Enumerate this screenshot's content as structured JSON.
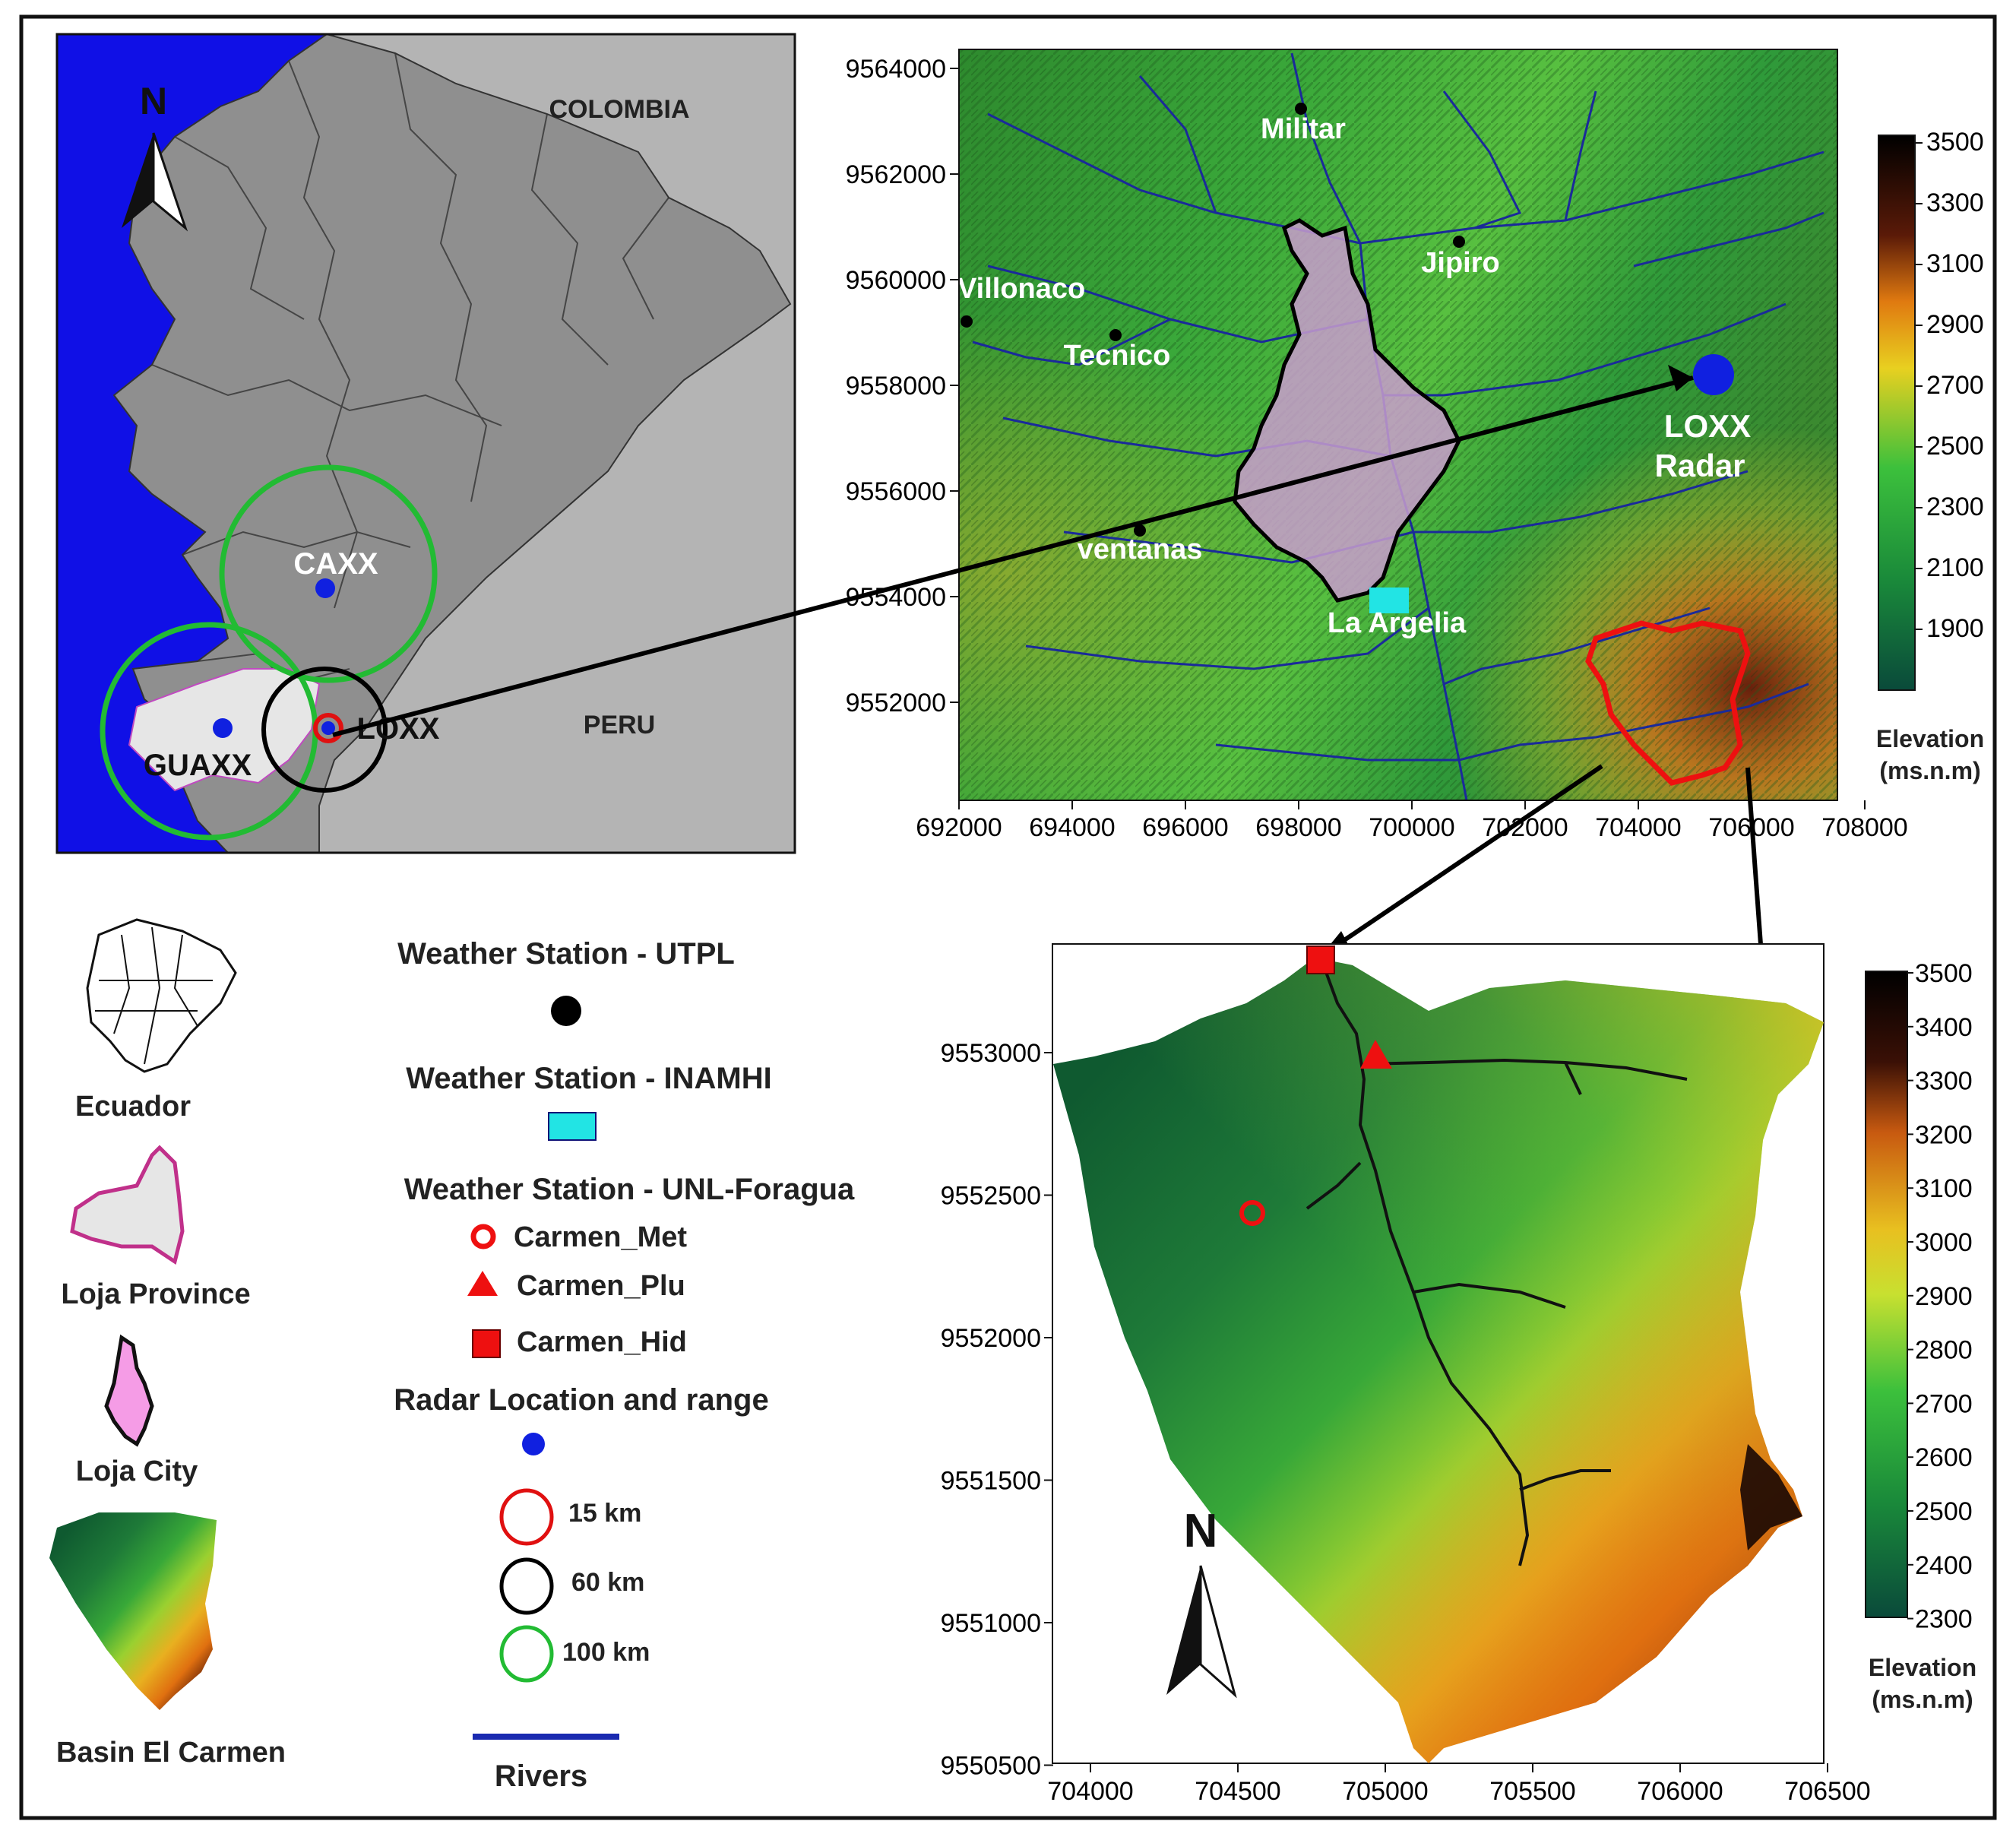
{
  "overview_map": {
    "north_label": "N",
    "countries": [
      "COLOMBIA",
      "PERU"
    ],
    "radars": [
      {
        "name": "CAXX"
      },
      {
        "name": "GUAXX"
      },
      {
        "name": "LOXX"
      }
    ]
  },
  "dem_map": {
    "stations": [
      "Militar",
      "Jipiro",
      "Villonaco",
      "Tecnico",
      "ventanas",
      "La Argelia"
    ],
    "radar_label_line1": "LOXX",
    "radar_label_line2": "Radar",
    "y_ticks": [
      "9564000",
      "9562000",
      "9560000",
      "9558000",
      "9556000",
      "9554000",
      "9552000"
    ],
    "x_ticks": [
      "692000",
      "694000",
      "696000",
      "698000",
      "700000",
      "702000",
      "704000",
      "706000",
      "708000"
    ],
    "colorbar": {
      "ticks": [
        "3500",
        "3300",
        "3100",
        "2900",
        "2700",
        "2500",
        "2300",
        "2100",
        "1900"
      ],
      "title_line1": "Elevation",
      "title_line2": "(ms.n.m)"
    }
  },
  "basin_map": {
    "north_label": "N",
    "y_ticks": [
      "9553000",
      "9552500",
      "9552000",
      "9551500",
      "9551000",
      "9550500"
    ],
    "x_ticks": [
      "704000",
      "704500",
      "705000",
      "705500",
      "706000",
      "706500"
    ],
    "colorbar": {
      "ticks": [
        "3500",
        "3400",
        "3300",
        "3200",
        "3100",
        "3000",
        "2900",
        "2800",
        "2700",
        "2600",
        "2500",
        "2400",
        "2300"
      ],
      "title_line1": "Elevation",
      "title_line2": "(ms.n.m)"
    }
  },
  "legend_left": {
    "ecuador": "Ecuador",
    "loja_province": "Loja Province",
    "loja_city": "Loja City",
    "basin": "Basin El Carmen"
  },
  "legend_right": {
    "utpl": "Weather Station - UTPL",
    "inamhi": "Weather Station - INAMHI",
    "unl": "Weather Station - UNL-Foragua",
    "met": "Carmen_Met",
    "plu": "Carmen_Plu",
    "hid": "Carmen_Hid",
    "radar": "Radar Location and range",
    "r15": "15 km",
    "r60": "60 km",
    "r100": "100 km",
    "rivers": "Rivers"
  },
  "colors": {
    "ocean": "#1010e6",
    "land": "#8f8f8f",
    "neighbors": "#b4b4b4",
    "loja": "#e6e6e6",
    "range_15": "#e01010",
    "range_60": "#000000",
    "range_100": "#22bb33",
    "inamhi": "#22e4e4",
    "radar": "#1020e0",
    "river": "#1a2a9a",
    "city_fill": "#c89ccc"
  }
}
